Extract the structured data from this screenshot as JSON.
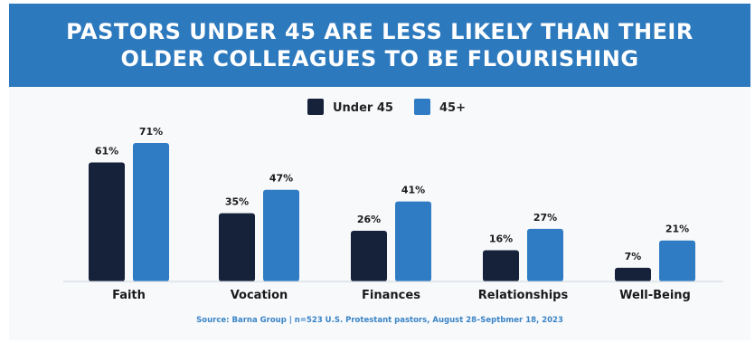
{
  "header": {
    "title_line1": "PASTORS UNDER 45 ARE LESS LIKELY THAN THEIR",
    "title_line2": "OLDER COLLEAGUES TO BE FLOURISHING"
  },
  "colors": {
    "header_bg": "#2d79bd",
    "under45": "#16213a",
    "over45": "#2f7cc4"
  },
  "source": "Source: Barna Group   |   n=523 U.S. Protestant pastors, August 28–Septbmer 18, 2023",
  "chart_data": {
    "type": "bar",
    "title": "PASTORS UNDER 45 ARE LESS LIKELY THAN THEIR OLDER COLLEAGUES TO BE FLOURISHING",
    "categories": [
      "Faith",
      "Vocation",
      "Finances",
      "Relationships",
      "Well-Being"
    ],
    "series": [
      {
        "name": "Under 45",
        "values": [
          61,
          35,
          26,
          16,
          7
        ],
        "labels": [
          "61%",
          "35%",
          "26%",
          "16%",
          "7%"
        ]
      },
      {
        "name": "45+",
        "values": [
          71,
          47,
          41,
          27,
          21
        ],
        "labels": [
          "71%",
          "47%",
          "41%",
          "27%",
          "21%"
        ]
      }
    ],
    "ylim": [
      0,
      71
    ],
    "legend_position": "top-center",
    "grid": false
  }
}
